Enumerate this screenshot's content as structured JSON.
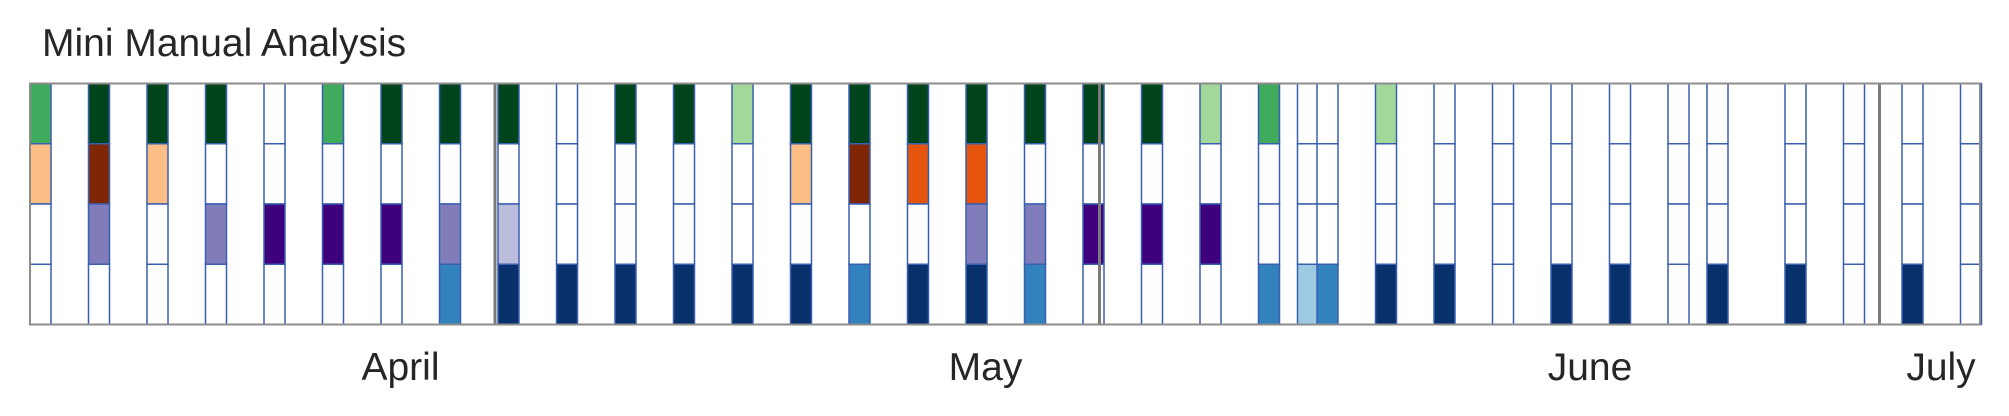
{
  "chart_data": {
    "type": "heatmap",
    "title": "Mini Manual Analysis",
    "xlabel": "",
    "ylabel": "",
    "start_date": "2019-03-27",
    "x_range": [
      "2019-03-27",
      "2019-07-05"
    ],
    "month_labels": [
      {
        "label": "April",
        "date": "2019-04-15"
      },
      {
        "label": "May",
        "date": "2019-05-15"
      },
      {
        "label": "June",
        "date": "2019-06-15"
      },
      {
        "label": "July",
        "date": "2019-07-03"
      }
    ],
    "month_dividers": [
      "2019-04-20",
      "2019-05-21",
      "2019-06-30"
    ],
    "rows": [
      {
        "palette": [
          "#a1d99b",
          "#41ab5d",
          "#00441b"
        ]
      },
      {
        "palette": [
          "#fdbe85",
          "#e6550d",
          "#7f2704"
        ]
      },
      {
        "palette": [
          "#bcbddc",
          "#807dba",
          "#3f007d"
        ]
      },
      {
        "palette": [
          "#9ecae1",
          "#3182bd",
          "#08306b"
        ]
      }
    ],
    "entries": [
      {
        "date": "2019-03-27",
        "levels": [
          2,
          1,
          0,
          0
        ]
      },
      {
        "date": "2019-03-30",
        "levels": [
          3,
          3,
          2,
          0
        ]
      },
      {
        "date": "2019-04-02",
        "levels": [
          3,
          1,
          0,
          0
        ]
      },
      {
        "date": "2019-04-05",
        "levels": [
          3,
          0,
          2,
          0
        ]
      },
      {
        "date": "2019-04-08",
        "levels": [
          0,
          0,
          3,
          0
        ]
      },
      {
        "date": "2019-04-11",
        "levels": [
          2,
          0,
          3,
          0
        ]
      },
      {
        "date": "2019-04-14",
        "levels": [
          3,
          0,
          3,
          0
        ]
      },
      {
        "date": "2019-04-17",
        "levels": [
          3,
          0,
          2,
          2
        ]
      },
      {
        "date": "2019-04-20",
        "levels": [
          3,
          0,
          1,
          3
        ]
      },
      {
        "date": "2019-04-23",
        "levels": [
          0,
          0,
          0,
          3
        ]
      },
      {
        "date": "2019-04-26",
        "levels": [
          3,
          0,
          0,
          3
        ]
      },
      {
        "date": "2019-04-29",
        "levels": [
          3,
          0,
          0,
          3
        ]
      },
      {
        "date": "2019-05-02",
        "levels": [
          1,
          0,
          0,
          3
        ]
      },
      {
        "date": "2019-05-05",
        "levels": [
          3,
          1,
          0,
          3
        ]
      },
      {
        "date": "2019-05-08",
        "levels": [
          3,
          3,
          0,
          2
        ]
      },
      {
        "date": "2019-05-11",
        "levels": [
          3,
          2,
          0,
          3
        ]
      },
      {
        "date": "2019-05-14",
        "levels": [
          3,
          2,
          2,
          3
        ]
      },
      {
        "date": "2019-05-17",
        "levels": [
          3,
          0,
          2,
          2
        ]
      },
      {
        "date": "2019-05-20",
        "levels": [
          3,
          0,
          3,
          0
        ]
      },
      {
        "date": "2019-05-23",
        "levels": [
          3,
          0,
          3,
          0
        ]
      },
      {
        "date": "2019-05-26",
        "levels": [
          1,
          0,
          3,
          0
        ]
      },
      {
        "date": "2019-05-29",
        "levels": [
          2,
          0,
          0,
          2
        ]
      },
      {
        "date": "2019-05-31",
        "levels": [
          0,
          0,
          0,
          1
        ]
      },
      {
        "date": "2019-06-01",
        "levels": [
          0,
          0,
          0,
          2
        ]
      },
      {
        "date": "2019-06-04",
        "levels": [
          1,
          0,
          0,
          3
        ]
      },
      {
        "date": "2019-06-07",
        "levels": [
          0,
          0,
          0,
          3
        ]
      },
      {
        "date": "2019-06-10",
        "levels": [
          0,
          0,
          0,
          0
        ]
      },
      {
        "date": "2019-06-13",
        "levels": [
          0,
          0,
          0,
          3
        ]
      },
      {
        "date": "2019-06-16",
        "levels": [
          0,
          0,
          0,
          3
        ]
      },
      {
        "date": "2019-06-19",
        "levels": [
          0,
          0,
          0,
          0
        ]
      },
      {
        "date": "2019-06-21",
        "levels": [
          0,
          0,
          0,
          3
        ]
      },
      {
        "date": "2019-06-25",
        "levels": [
          0,
          0,
          0,
          3
        ]
      },
      {
        "date": "2019-06-28",
        "levels": [
          0,
          0,
          0,
          0
        ]
      },
      {
        "date": "2019-07-01",
        "levels": [
          0,
          0,
          0,
          3
        ]
      },
      {
        "date": "2019-07-04",
        "levels": [
          0,
          0,
          0,
          0
        ]
      }
    ]
  }
}
